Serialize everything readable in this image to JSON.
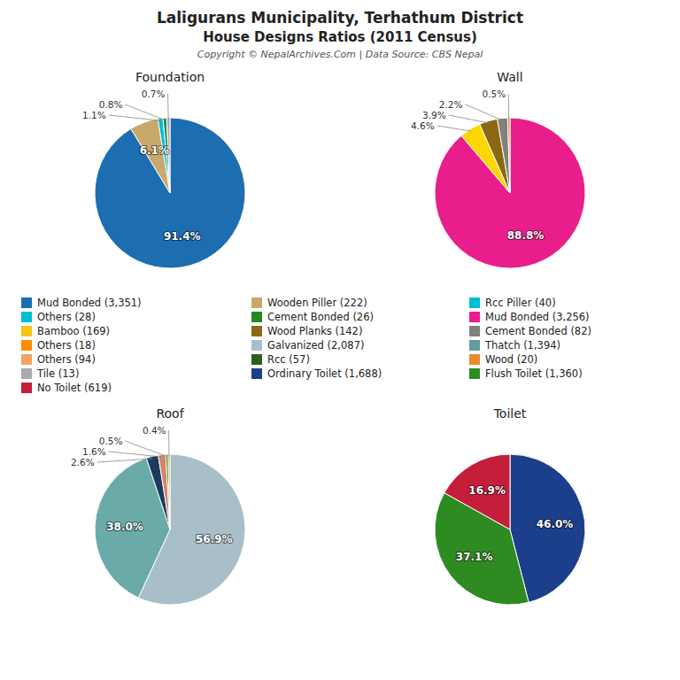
{
  "title": "Laligurans Municipality, Terhathum District",
  "subtitle": "House Designs Ratios (2011 Census)",
  "annotations": [
    "Copyright © NepalArchives.Com | Data Source: CBS Nepal"
  ],
  "chart_data": [
    {
      "type": "pie",
      "title": "Foundation",
      "values": [
        91.4,
        6.1,
        1.1,
        0.8,
        0.7
      ],
      "value_labels": [
        "91.4%",
        "6.1%",
        "1.1%",
        "0.8%",
        "0.7%"
      ],
      "colors": [
        "#1c6eb0",
        "#c8a86b",
        "#00bcd4",
        "#2e8b57",
        "#aaaaaa"
      ],
      "data_labels": true
    },
    {
      "type": "pie",
      "title": "Wall",
      "values": [
        88.8,
        4.6,
        3.9,
        2.2,
        0.5
      ],
      "value_labels": [
        "88.8%",
        "4.6%",
        "3.9%",
        "2.2%",
        "0.5%"
      ],
      "colors": [
        "#e91e8c",
        "#ffd700",
        "#8b6914",
        "#808080",
        "#e88a2e"
      ],
      "data_labels": true
    },
    {
      "type": "pie",
      "title": "Roof",
      "values": [
        56.9,
        38.0,
        2.6,
        1.6,
        0.5,
        0.4
      ],
      "value_labels": [
        "56.9%",
        "38.0%",
        "2.6%",
        "1.6%",
        "0.5%",
        "0.4%"
      ],
      "colors": [
        "#a8bfc9",
        "#6aabaa",
        "#1e3a5f",
        "#d4846a",
        "#228b22",
        "#e88a2e"
      ],
      "data_labels": true
    },
    {
      "type": "pie",
      "title": "Toilet",
      "values": [
        46.0,
        37.1,
        16.9
      ],
      "value_labels": [
        "46.0%",
        "37.1%",
        "16.9%"
      ],
      "colors": [
        "#1c3f8c",
        "#2e8b22",
        "#c41e3a"
      ],
      "data_labels": true
    }
  ],
  "legend_columns": [
    [
      {
        "name": "Mud Bonded (3,351)",
        "color": "#1c6eb0"
      },
      {
        "name": "Others (28)",
        "color": "#00bcd4"
      },
      {
        "name": "Bamboo (169)",
        "color": "#f5c518"
      },
      {
        "name": "Others (18)",
        "color": "#ff8c00"
      },
      {
        "name": "Others (94)",
        "color": "#f4a460"
      },
      {
        "name": "Tile (13)",
        "color": "#aaaaaa"
      },
      {
        "name": "No Toilet (619)",
        "color": "#c41e3a"
      }
    ],
    [
      {
        "name": "Wooden Piller (222)",
        "color": "#c8a86b"
      },
      {
        "name": "Cement Bonded (26)",
        "color": "#228b22"
      },
      {
        "name": "Wood Planks (142)",
        "color": "#8b6914"
      },
      {
        "name": "Galvanized (2,087)",
        "color": "#a8bfc9"
      },
      {
        "name": "Rcc (57)",
        "color": "#2e5e1e"
      },
      {
        "name": "Ordinary Toilet (1,688)",
        "color": "#1c3f8c"
      }
    ],
    [
      {
        "name": "Rcc Piller (40)",
        "color": "#00bcd4"
      },
      {
        "name": "Mud Bonded (3,256)",
        "color": "#e91e8c"
      },
      {
        "name": "Cement Bonded (82)",
        "color": "#808080"
      },
      {
        "name": "Thatch (1,394)",
        "color": "#5f9ea0"
      },
      {
        "name": "Wood (20)",
        "color": "#e88a2e"
      },
      {
        "name": "Flush Toilet (1,360)",
        "color": "#2e8b22"
      }
    ]
  ]
}
